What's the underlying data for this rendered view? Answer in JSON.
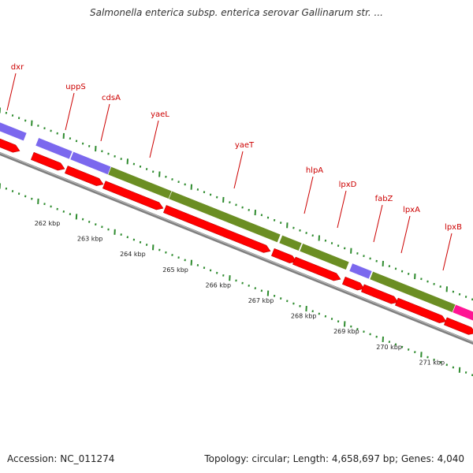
{
  "title": "Salmonella enterica subsp. enterica serovar Gallinarum str. ...",
  "footer": {
    "accession": "Accession: NC_011274",
    "summary": "Topology: circular; Length: 4,658,697 bp; Genes: 4,040"
  },
  "colors": {
    "cds": "#ff0000",
    "purple_feature": "#7b68ee",
    "green_feature": "#6b8e23",
    "magenta_feature": "#ff1493",
    "backbone": "#7f7f7f",
    "tick": "#2e8b2e",
    "label": "#cc0000"
  },
  "gene_labels": [
    "dxr",
    "uppS",
    "cdsA",
    "yaeL",
    "yaeT",
    "hlpA",
    "lpxD",
    "fabZ",
    "lpxA",
    "lpxB"
  ],
  "kbp_labels": [
    "262 kbp",
    "263 kbp",
    "264 kbp",
    "265 kbp",
    "266 kbp",
    "267 kbp",
    "268 kbp",
    "269 kbp",
    "270 kbp",
    "271 kbp"
  ]
}
